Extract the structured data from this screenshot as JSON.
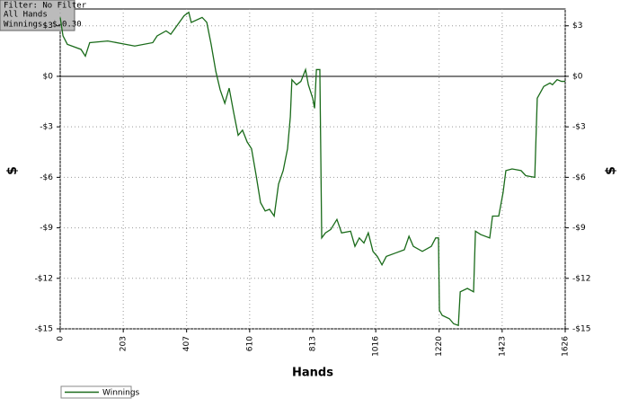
{
  "chart_data": {
    "type": "line",
    "info": [
      "Filter: No Filter",
      "All Hands",
      "Winnings: $-0.30"
    ],
    "xlabel": "Hands",
    "ylabel": "$",
    "x": [
      0,
      9,
      23,
      67,
      81,
      95,
      153,
      211,
      240,
      298,
      312,
      341,
      356,
      399,
      414,
      422,
      457,
      472,
      486,
      501,
      515,
      530,
      544,
      558,
      573,
      587,
      602,
      616,
      631,
      645,
      660,
      674,
      689,
      703,
      718,
      732,
      741,
      746,
      761,
      775,
      790,
      799,
      813,
      819,
      825,
      836,
      842,
      854,
      871,
      891,
      906,
      935,
      949,
      963,
      978,
      992,
      1007,
      1021,
      1036,
      1050,
      1079,
      1108,
      1123,
      1137,
      1166,
      1195,
      1209,
      1218,
      1221,
      1230,
      1253,
      1267,
      1282,
      1288,
      1311,
      1331,
      1337,
      1354,
      1383,
      1392,
      1412,
      1426,
      1435,
      1455,
      1484,
      1499,
      1528,
      1536,
      1548,
      1557,
      1577,
      1585,
      1600,
      1614,
      1626
    ],
    "series": [
      {
        "name": "Winnings",
        "color": "#1a6b1a",
        "values": [
          3.5,
          2.4,
          1.9,
          1.6,
          1.2,
          2.0,
          2.1,
          1.9,
          1.8,
          2.0,
          2.4,
          2.7,
          2.5,
          3.6,
          3.8,
          3.2,
          3.5,
          3.2,
          1.9,
          0.3,
          -0.8,
          -1.6,
          -0.7,
          -2.1,
          -3.5,
          -3.2,
          -3.9,
          -4.3,
          -5.9,
          -7.5,
          -8.0,
          -7.9,
          -8.3,
          -6.4,
          -5.6,
          -4.3,
          -2.4,
          -0.2,
          -0.5,
          -0.3,
          0.4,
          -0.5,
          -1.3,
          -1.9,
          0.4,
          0.4,
          -9.6,
          -9.3,
          -9.1,
          -8.5,
          -9.3,
          -9.2,
          -10.1,
          -9.6,
          -9.9,
          -9.3,
          -10.4,
          -10.7,
          -11.2,
          -10.7,
          -10.5,
          -10.3,
          -9.5,
          -10.1,
          -10.4,
          -10.1,
          -9.6,
          -9.6,
          -13.9,
          -14.2,
          -14.4,
          -14.7,
          -14.8,
          -12.8,
          -12.6,
          -12.8,
          -9.2,
          -9.4,
          -9.6,
          -8.3,
          -8.3,
          -6.9,
          -5.6,
          -5.5,
          -5.6,
          -5.9,
          -6.0,
          -1.3,
          -0.9,
          -0.6,
          -0.4,
          -0.5,
          -0.2,
          -0.3,
          -0.3
        ]
      }
    ],
    "xlim": [
      0,
      1626
    ],
    "xticks": [
      0,
      203,
      407,
      610,
      813,
      1016,
      1220,
      1423,
      1626
    ],
    "ylim": [
      -15,
      4
    ],
    "yticks": [
      {
        "value": -15,
        "label": "-$15"
      },
      {
        "value": -12,
        "label": "-$12"
      },
      {
        "value": -9,
        "label": "-$9"
      },
      {
        "value": -6,
        "label": "-$6"
      },
      {
        "value": -3,
        "label": "-$3"
      },
      {
        "value": 0,
        "label": "$0"
      },
      {
        "value": 3,
        "label": "$3"
      }
    ],
    "grid": true
  }
}
